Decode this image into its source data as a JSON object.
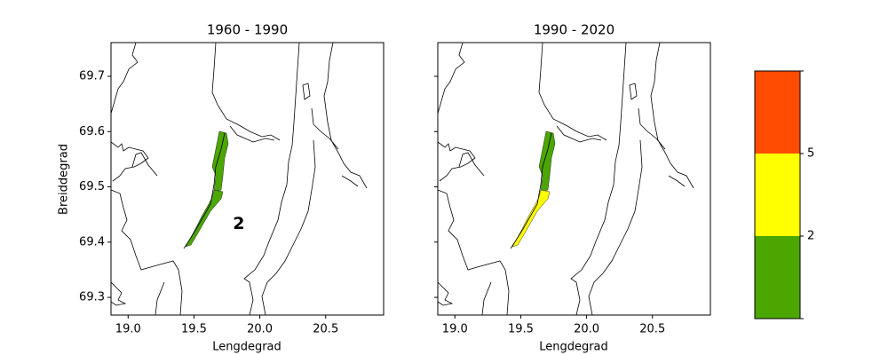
{
  "chart_data": {
    "type": "map",
    "xlabel": "Lengdegrad",
    "ylabel": "Breiddegrad",
    "xlim": [
      18.87,
      20.94
    ],
    "ylim": [
      69.268,
      69.761
    ],
    "xticks": [
      {
        "value": 19,
        "label": "19.0"
      },
      19.5,
      {
        "value": 20,
        "label": "20.0"
      },
      20.5
    ],
    "yticks": [
      69.3,
      69.4,
      69.5,
      69.6,
      69.7
    ],
    "panels": [
      {
        "title": "1960 - 1990",
        "zone_colors": [
          "#4ca600",
          "#4ca600"
        ],
        "annotation": {
          "text": "2",
          "x": 19.84,
          "y": 69.433
        }
      },
      {
        "title": "1990 - 2020",
        "zone_colors": [
          "#4ca600",
          "#ffff00"
        ]
      }
    ],
    "colorbar": {
      "colors": [
        "#4ca600",
        "#ffff00",
        "#ff4c00"
      ],
      "ticks": [
        2,
        5
      ]
    }
  }
}
